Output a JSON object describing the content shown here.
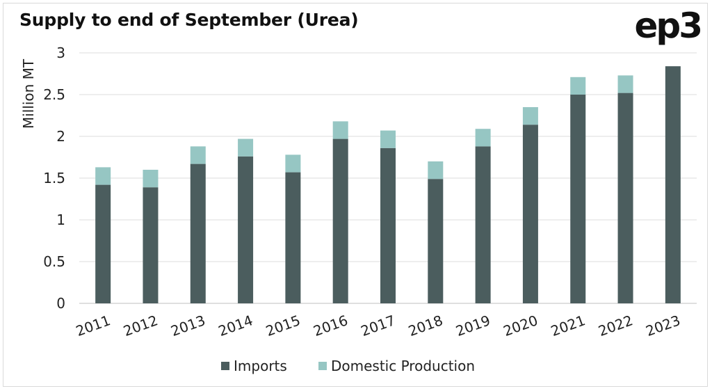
{
  "title": "Supply to end of September (Urea)",
  "logo": "ep3",
  "chart_data": {
    "type": "bar",
    "stacked": true,
    "title": "Supply to end of September (Urea)",
    "ylabel": "Million MT",
    "xlabel": "",
    "ylim": [
      0,
      3
    ],
    "yticks": [
      "0",
      "0.5",
      "1",
      "1.5",
      "2",
      "2.5",
      "3"
    ],
    "grid": true,
    "legend": "bottom",
    "categories": [
      "2011",
      "2012",
      "2013",
      "2014",
      "2015",
      "2016",
      "2017",
      "2018",
      "2019",
      "2020",
      "2021",
      "2022",
      "2023"
    ],
    "series": [
      {
        "name": "Imports",
        "color": "#4b5d5e",
        "values": [
          1.42,
          1.39,
          1.67,
          1.76,
          1.57,
          1.97,
          1.86,
          1.49,
          1.88,
          2.14,
          2.5,
          2.52,
          2.84
        ]
      },
      {
        "name": "Domestic Production",
        "color": "#96c6c3",
        "values": [
          0.21,
          0.21,
          0.21,
          0.21,
          0.21,
          0.21,
          0.21,
          0.21,
          0.21,
          0.21,
          0.21,
          0.21,
          0.0
        ]
      }
    ]
  }
}
